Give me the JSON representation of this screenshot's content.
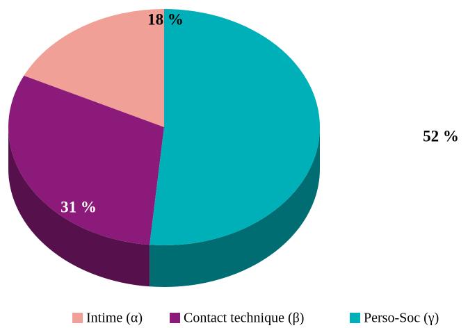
{
  "chart_data": {
    "type": "pie",
    "categories": [
      "Intime  (α)",
      "Contact technique (β)",
      "Perso-Soc (γ)"
    ],
    "values": [
      18,
      31,
      52
    ],
    "value_labels": [
      "18 %",
      "31 %",
      "52 %"
    ],
    "colors": [
      "#f0a096",
      "#8b1a7a",
      "#00b0b8"
    ],
    "legend": "bottom"
  }
}
